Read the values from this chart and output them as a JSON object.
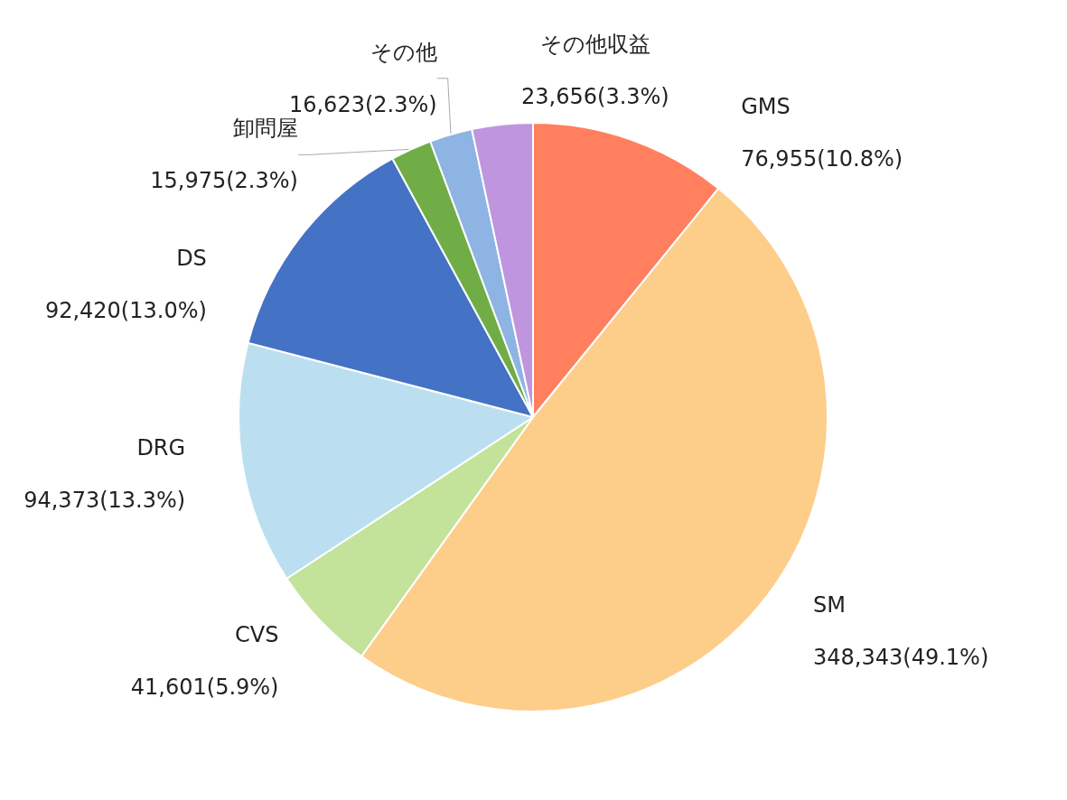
{
  "chart_data": {
    "type": "pie",
    "categories": [
      "GMS",
      "SM",
      "CVS",
      "DRG",
      "DS",
      "卸問屋",
      "その他",
      "その他収益"
    ],
    "values": [
      76955,
      348343,
      41601,
      94373,
      92420,
      15975,
      16623,
      23656
    ],
    "value_labels": [
      "76,955(10.8%)",
      "348,343(49.1%)",
      "41,601(5.9%)",
      "94,373(13.3%)",
      "92,420(13.0%)",
      "15,975(2.3%)",
      "16,623(2.3%)",
      "23,656(3.3%)"
    ],
    "colors": [
      "#ff7f5e",
      "#fdcd8a",
      "#c3e29a",
      "#bbdff0",
      "#4472c4",
      "#70ad47",
      "#8db4e2",
      "#bf95df"
    ],
    "legend": false
  }
}
